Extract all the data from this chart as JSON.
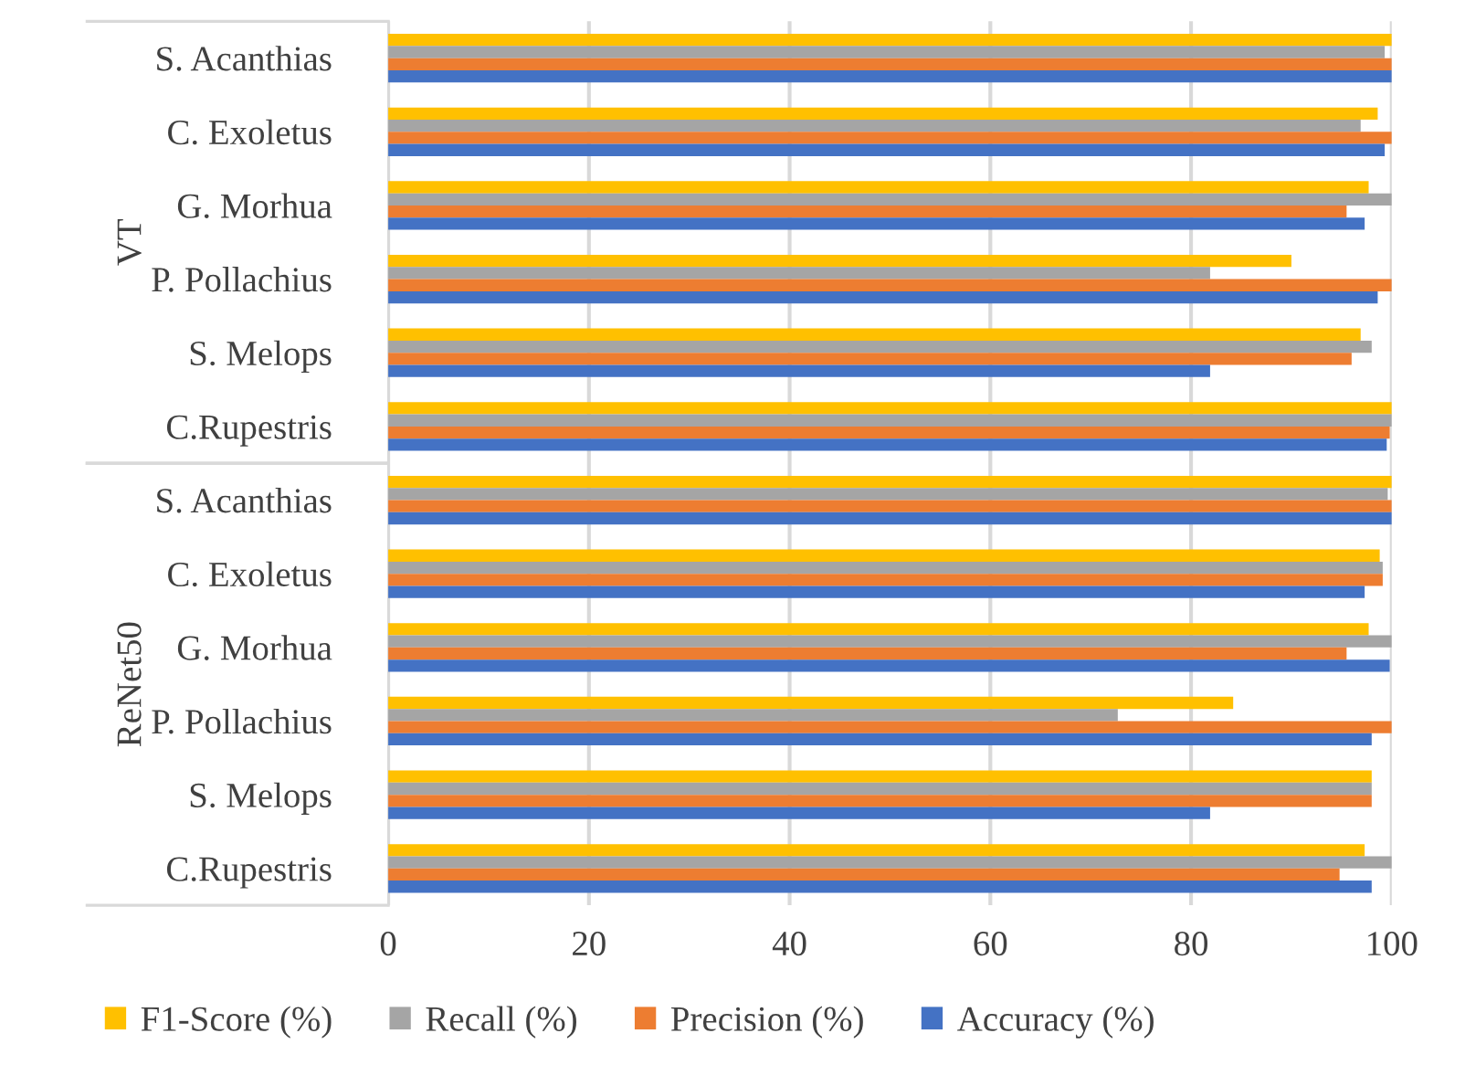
{
  "chart_data": {
    "type": "bar",
    "orientation": "horizontal",
    "categories": [
      "S. Acanthias",
      "C. Exoletus",
      "G. Morhua",
      "P. Pollachius",
      "S. Melops",
      "C.Rupestris",
      "S. Acanthias",
      "C. Exoletus",
      "G. Morhua",
      "P. Pollachius",
      "S. Melops",
      "C.Rupestris"
    ],
    "series": [
      {
        "name": "F1-Score (%)",
        "color": "#ffc000",
        "values": [
          100,
          98.6,
          97.7,
          90.0,
          96.9,
          100,
          100,
          98.8,
          97.7,
          84.2,
          98.0,
          97.3
        ]
      },
      {
        "name": "Recall (%)",
        "color": "#a5a5a5",
        "values": [
          99.3,
          96.9,
          100,
          81.9,
          98.0,
          100,
          99.6,
          99.1,
          100,
          72.7,
          98.0,
          100
        ]
      },
      {
        "name": "Precision (%)",
        "color": "#ed7d31",
        "values": [
          100,
          100,
          95.5,
          100,
          96.0,
          99.8,
          100,
          99.1,
          95.5,
          100,
          98.0,
          94.8
        ]
      },
      {
        "name": "Accuracy (%)",
        "color": "#4472c4",
        "values": [
          100,
          99.3,
          97.3,
          98.6,
          81.9,
          99.5,
          100,
          97.3,
          99.8,
          98.0,
          81.9,
          98.0
        ]
      }
    ],
    "annotations": [
      "VT",
      "ReNet50"
    ],
    "xlim": [
      0,
      100
    ],
    "xticks": [
      0,
      20,
      40,
      60,
      80,
      100
    ],
    "grid": "x",
    "legend": "bottom"
  }
}
